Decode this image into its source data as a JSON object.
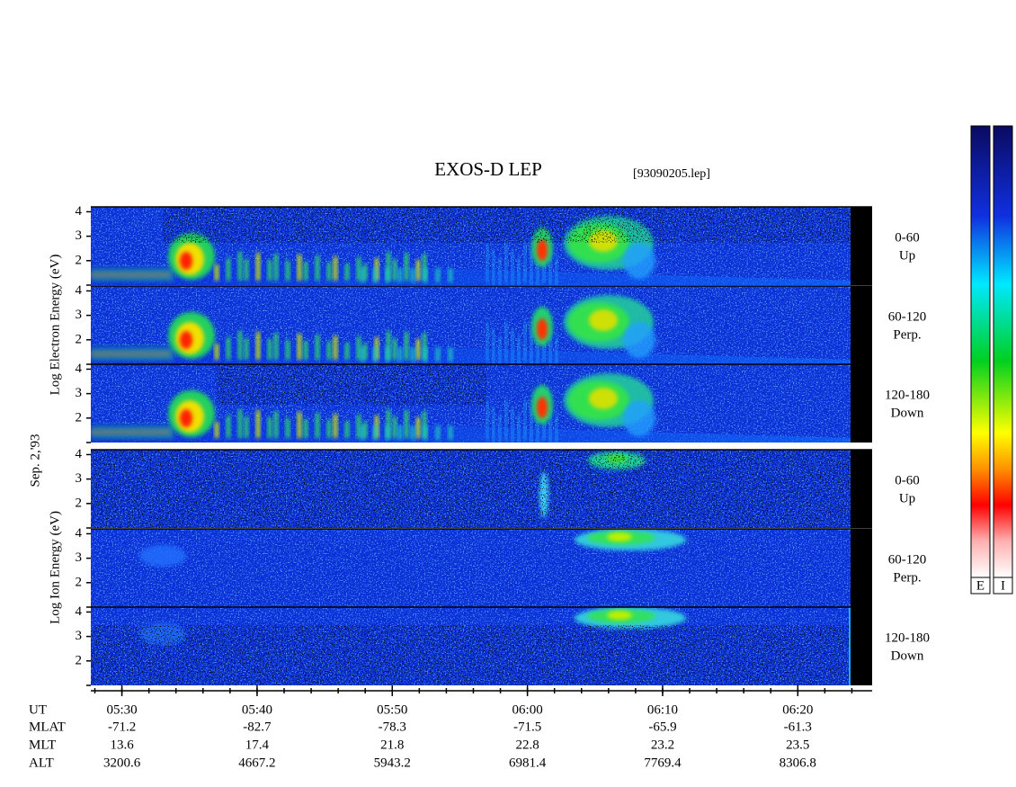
{
  "header": {
    "title": "EXOS-D LEP",
    "file": "[93090205.lep]"
  },
  "date_label": "Sep. 2,'93",
  "panels": [
    {
      "ylabel": "Log Electron Energy (eV)",
      "ylim": [
        1,
        4.2
      ],
      "yticks": [
        2,
        3,
        4
      ],
      "subpanels": [
        {
          "range": "0-60",
          "direction": "Up"
        },
        {
          "range": "60-120",
          "direction": "Perp."
        },
        {
          "range": "120-180",
          "direction": "Down"
        }
      ]
    },
    {
      "ylabel": "Log Ion Energy (eV)",
      "ylim": [
        1,
        4.2
      ],
      "yticks": [
        2,
        3,
        4
      ],
      "subpanels": [
        {
          "range": "0-60",
          "direction": "Up"
        },
        {
          "range": "60-120",
          "direction": "Perp."
        },
        {
          "range": "120-180",
          "direction": "Down"
        }
      ]
    }
  ],
  "time_axis": {
    "ut_label": "UT",
    "xlim": [
      327.7,
      385.5
    ],
    "xticks": [
      {
        "value": 330,
        "label": "05:30"
      },
      {
        "value": 340,
        "label": "05:40"
      },
      {
        "value": 350,
        "label": "05:50"
      },
      {
        "value": 360,
        "label": "06:00"
      },
      {
        "value": 370,
        "label": "06:10"
      },
      {
        "value": 380,
        "label": "06:20"
      }
    ]
  },
  "ephemeris": [
    {
      "label": "MLAT",
      "values": [
        -71.2,
        -82.7,
        -78.3,
        -71.5,
        -65.9,
        -61.3
      ]
    },
    {
      "label": "MLT",
      "values": [
        13.6,
        17.4,
        21.8,
        22.8,
        23.2,
        23.5
      ]
    },
    {
      "label": "ALT",
      "values": [
        3200.6,
        4667.2,
        5943.2,
        6981.4,
        7769.4,
        8306.8
      ]
    }
  ],
  "colorbars": [
    {
      "label": "E"
    },
    {
      "label": "I"
    }
  ]
}
